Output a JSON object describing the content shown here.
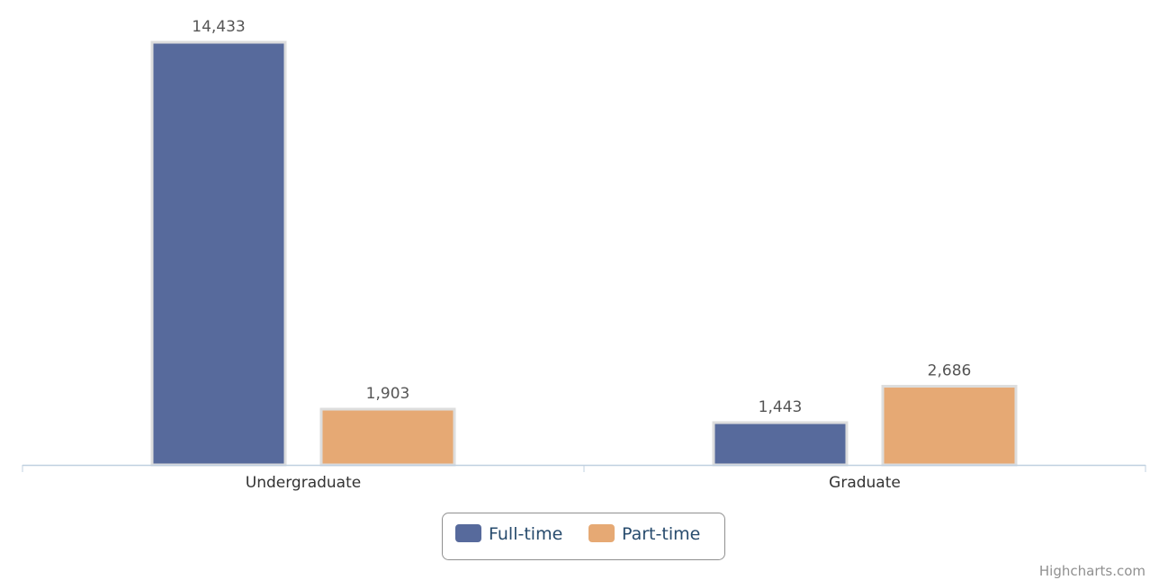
{
  "chart_data": {
    "type": "bar",
    "orientation": "vertical",
    "title": "",
    "xlabel": "",
    "ylabel": "",
    "categories": [
      "Undergraduate",
      "Graduate"
    ],
    "series": [
      {
        "name": "Full-time",
        "values": [
          14433,
          1443
        ],
        "labels": [
          "14,433",
          "1,443"
        ],
        "color": "#576a9c"
      },
      {
        "name": "Part-time",
        "values": [
          1903,
          2686
        ],
        "labels": [
          "1,903",
          "2,686"
        ],
        "color": "#e6a974"
      }
    ],
    "ylim": [
      0,
      14433
    ],
    "grid": false,
    "legend_position": "bottom-center",
    "credits": "Highcharts.com",
    "colors": {
      "axis": "#c0d0e0",
      "legend_border": "#909090",
      "bar_border": "#dddddd"
    }
  }
}
